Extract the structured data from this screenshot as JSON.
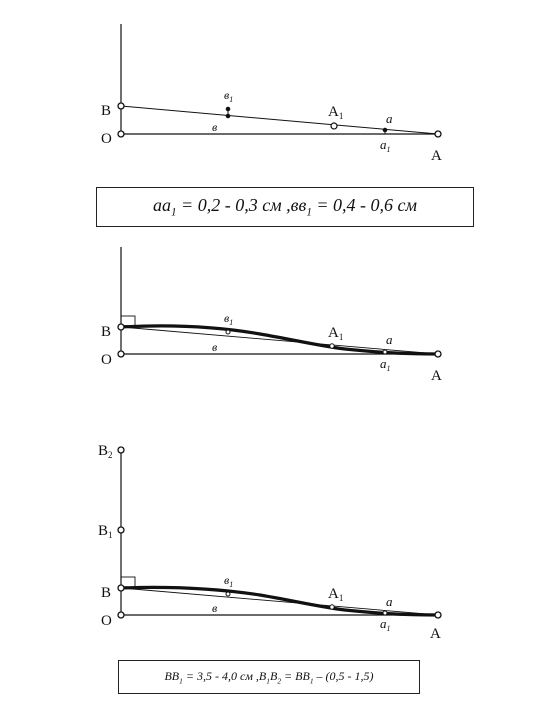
{
  "panel1": {
    "label_B": "B",
    "label_O": "O",
    "label_A": "A",
    "label_A1": "A",
    "label_A1_sub": "1",
    "label_b": "в",
    "label_b1": "в",
    "label_b1_sub": "1",
    "label_a": "a",
    "label_a1": "a",
    "label_a1_sub": "1"
  },
  "formula1": {
    "part1": "aa",
    "part1_sub": "1",
    "part1_value": " = 0,2 - 0,3 см ,  ",
    "part2": "вв",
    "part2_sub": "1",
    "part2_value": " = 0,4 - 0,6 см"
  },
  "panel2": {
    "label_B": "B",
    "label_O": "O",
    "label_A": "A",
    "label_A1": "A",
    "label_A1_sub": "1",
    "label_b": "в",
    "label_b1": "в",
    "label_b1_sub": "1",
    "label_a": "a",
    "label_a1": "a",
    "label_a1_sub": "1"
  },
  "panel3": {
    "label_B2": "B",
    "label_B2_sub": "2",
    "label_B1": "B",
    "label_B1_sub": "1",
    "label_B": "B",
    "label_O": "O",
    "label_A": "A",
    "label_A1": "A",
    "label_A1_sub": "1",
    "label_b": "в",
    "label_b1": "в",
    "label_b1_sub": "1",
    "label_a": "a",
    "label_a1": "a",
    "label_a1_sub": "1"
  },
  "formula2": {
    "p1": "BB",
    "p1_sub": "1",
    "p1_value": " = 3,5 - 4,0 см ,   ",
    "p2": "B",
    "p2_sub": "1",
    "p2b": "B",
    "p2b_sub": "2",
    "p2_eq": " = BB",
    "p2_eq_sub": "1",
    "p2_tail": " – (0,5 - 1,5)"
  }
}
